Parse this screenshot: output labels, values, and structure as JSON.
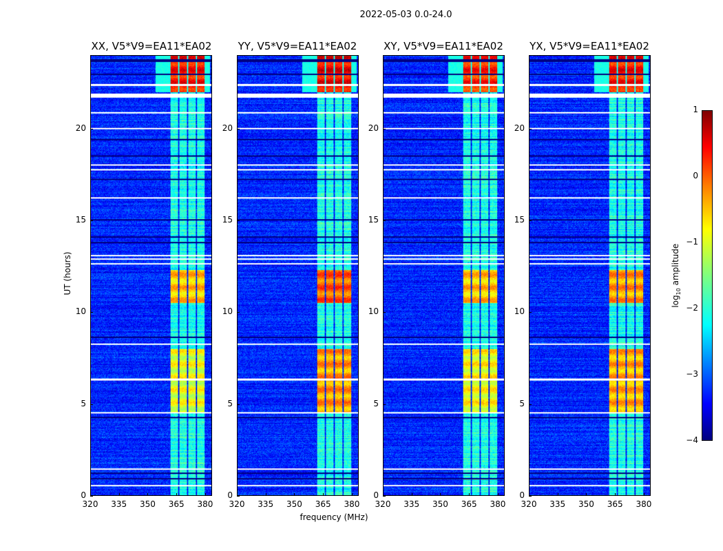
{
  "suptitle": "2022-05-03 0.0-24.0",
  "ylabel": "UT (hours)",
  "xlabel": "frequency (MHz)",
  "colorbar": {
    "label_pre": "log",
    "label_sub": "10",
    "label_post": " amplitude",
    "ticks": [
      "1",
      "0",
      "−1",
      "−2",
      "−3",
      "−4"
    ],
    "range": [
      -4,
      1
    ],
    "colormap": "jet"
  },
  "chart_data": {
    "type": "heatmap",
    "title": "2022-05-03 0.0-24.0",
    "xlabel": "frequency (MHz)",
    "ylabel": "UT (hours)",
    "xlim": [
      320,
      383.6
    ],
    "ylim": [
      0,
      24
    ],
    "xticks": [
      "320",
      "335",
      "350",
      "365",
      "380"
    ],
    "xtick_values": [
      320,
      335,
      350,
      365,
      380
    ],
    "yticks": [
      "0",
      "5",
      "10",
      "15",
      "20"
    ],
    "ytick_values": [
      0,
      5,
      10,
      15,
      20
    ],
    "color_range": [
      -4,
      1
    ],
    "background_level": -3.2,
    "rfi_subbands_mhz": [
      [
        362,
        366
      ],
      [
        366.8,
        370.6
      ],
      [
        371.4,
        375.2
      ],
      [
        376,
        380
      ]
    ],
    "rfi_base_level": -2.0,
    "flagged_rows_hours": [
      [
        22.35,
        22.45
      ],
      [
        21.7,
        21.95
      ],
      [
        20.85,
        20.92
      ],
      [
        19.97,
        20.05
      ],
      [
        18.0,
        18.07
      ],
      [
        17.75,
        17.82
      ],
      [
        16.2,
        16.27
      ],
      [
        13.05,
        13.12
      ],
      [
        12.85,
        12.92
      ],
      [
        12.6,
        12.67
      ],
      [
        8.2,
        8.27
      ],
      [
        6.28,
        6.38
      ],
      [
        4.45,
        4.55
      ],
      [
        1.38,
        1.48
      ],
      [
        0.5,
        0.55
      ]
    ],
    "dark_rows_hours": [
      [
        23.65,
        23.8
      ],
      [
        22.95,
        23.02
      ],
      [
        19.38,
        19.45
      ],
      [
        18.5,
        18.57
      ],
      [
        17.2,
        17.27
      ],
      [
        15.0,
        15.07
      ],
      [
        14.05,
        14.12
      ],
      [
        13.75,
        13.82
      ],
      [
        8.6,
        8.67
      ],
      [
        4.2,
        4.27
      ],
      [
        1.18,
        1.25
      ],
      [
        0.88,
        0.95
      ]
    ],
    "panels": [
      {
        "title": "XX, V5*V9=EA11*EA02",
        "epochs": [
          {
            "hours": [
              22,
              24
            ],
            "level": 0.3
          },
          {
            "hours": [
              10.5,
              12.3
            ],
            "level": -0.6
          },
          {
            "hours": [
              4.5,
              8
            ],
            "level": -1.0
          }
        ]
      },
      {
        "title": "YY, V5*V9=EA11*EA02",
        "epochs": [
          {
            "hours": [
              22,
              24
            ],
            "level": 0.4
          },
          {
            "hours": [
              10.5,
              12.3
            ],
            "level": -0.1
          },
          {
            "hours": [
              4.5,
              8
            ],
            "level": -0.4
          }
        ]
      },
      {
        "title": "XY, V5*V9=EA11*EA02",
        "epochs": [
          {
            "hours": [
              22,
              24
            ],
            "level": 0.2
          },
          {
            "hours": [
              10.5,
              12.3
            ],
            "level": -0.6
          },
          {
            "hours": [
              4.5,
              8
            ],
            "level": -0.9
          }
        ]
      },
      {
        "title": "YX, V5*V9=EA11*EA02",
        "epochs": [
          {
            "hours": [
              22,
              24
            ],
            "level": 0.3
          },
          {
            "hours": [
              10.5,
              12.3
            ],
            "level": -0.4
          },
          {
            "hours": [
              4.5,
              8
            ],
            "level": -0.5
          }
        ]
      }
    ]
  }
}
